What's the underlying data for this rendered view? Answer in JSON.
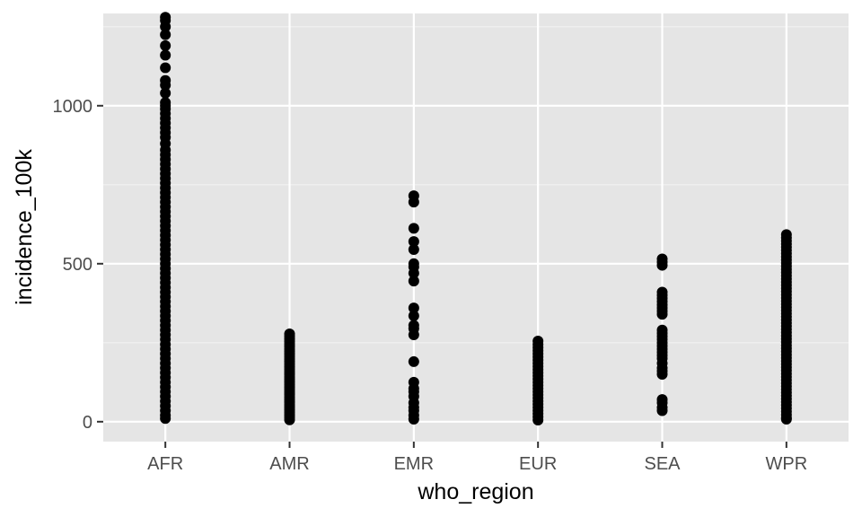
{
  "chart_data": {
    "type": "scatter",
    "xlabel": "who_region",
    "ylabel": "incidence_100k",
    "categories": [
      "AFR",
      "AMR",
      "EMR",
      "EUR",
      "SEA",
      "WPR"
    ],
    "ylim": [
      -63,
      1292
    ],
    "y_ticks": [
      0,
      500,
      1000
    ],
    "y_tick_labels": [
      "0",
      "500",
      "1000"
    ],
    "grid": true,
    "legend": "none",
    "series": [
      {
        "category": "AFR",
        "values": [
          1280,
          1270,
          1250,
          1225,
          1190,
          1160,
          1120,
          1080,
          1065,
          1040,
          1010,
          1000,
          990,
          975,
          960,
          945,
          930,
          915,
          900,
          880,
          860,
          845,
          830,
          815,
          800,
          785,
          770,
          755,
          740,
          725,
          710,
          695,
          680,
          665,
          650,
          635,
          620,
          605,
          590,
          575,
          560,
          545,
          530,
          515,
          500,
          485,
          470,
          455,
          440,
          425,
          410,
          395,
          380,
          365,
          350,
          335,
          320,
          305,
          290,
          275,
          260,
          245,
          230,
          215,
          200,
          185,
          170,
          155,
          140,
          125,
          110,
          95,
          80,
          65,
          50,
          35,
          20,
          10
        ]
      },
      {
        "category": "AMR",
        "values": [
          278,
          270,
          262,
          254,
          246,
          238,
          230,
          222,
          214,
          206,
          198,
          190,
          182,
          174,
          166,
          158,
          150,
          142,
          134,
          126,
          118,
          110,
          102,
          94,
          86,
          78,
          70,
          62,
          54,
          46,
          38,
          30,
          22,
          14,
          6
        ]
      },
      {
        "category": "EMR",
        "values": [
          715,
          695,
          612,
          570,
          545,
          500,
          490,
          470,
          445,
          360,
          335,
          305,
          295,
          275,
          190,
          125,
          105,
          95,
          80,
          60,
          45,
          35,
          20,
          8
        ]
      },
      {
        "category": "EUR",
        "values": [
          255,
          245,
          235,
          225,
          215,
          205,
          195,
          185,
          175,
          165,
          155,
          145,
          135,
          125,
          115,
          105,
          95,
          85,
          75,
          65,
          55,
          45,
          35,
          25,
          15,
          5
        ]
      },
      {
        "category": "SEA",
        "values": [
          515,
          505,
          495,
          410,
          400,
          390,
          380,
          370,
          360,
          350,
          340,
          290,
          280,
          270,
          260,
          250,
          240,
          230,
          220,
          210,
          200,
          185,
          170,
          160,
          150,
          70,
          60,
          45,
          35
        ]
      },
      {
        "category": "WPR",
        "values": [
          592,
          582,
          572,
          562,
          552,
          542,
          532,
          522,
          512,
          502,
          492,
          482,
          472,
          462,
          452,
          442,
          432,
          422,
          412,
          402,
          392,
          382,
          372,
          362,
          352,
          342,
          332,
          322,
          312,
          302,
          292,
          282,
          272,
          262,
          252,
          242,
          232,
          222,
          212,
          202,
          192,
          182,
          172,
          162,
          152,
          142,
          132,
          122,
          112,
          102,
          92,
          82,
          72,
          62,
          52,
          42,
          32,
          22,
          12,
          8
        ]
      }
    ]
  },
  "colors": {
    "panel_background": "#e5e5e5",
    "grid_major": "#ffffff",
    "grid_minor": "#f2f2f2",
    "point": "#000000",
    "tick_text": "#4d4d4d",
    "axis_title": "#000000"
  }
}
